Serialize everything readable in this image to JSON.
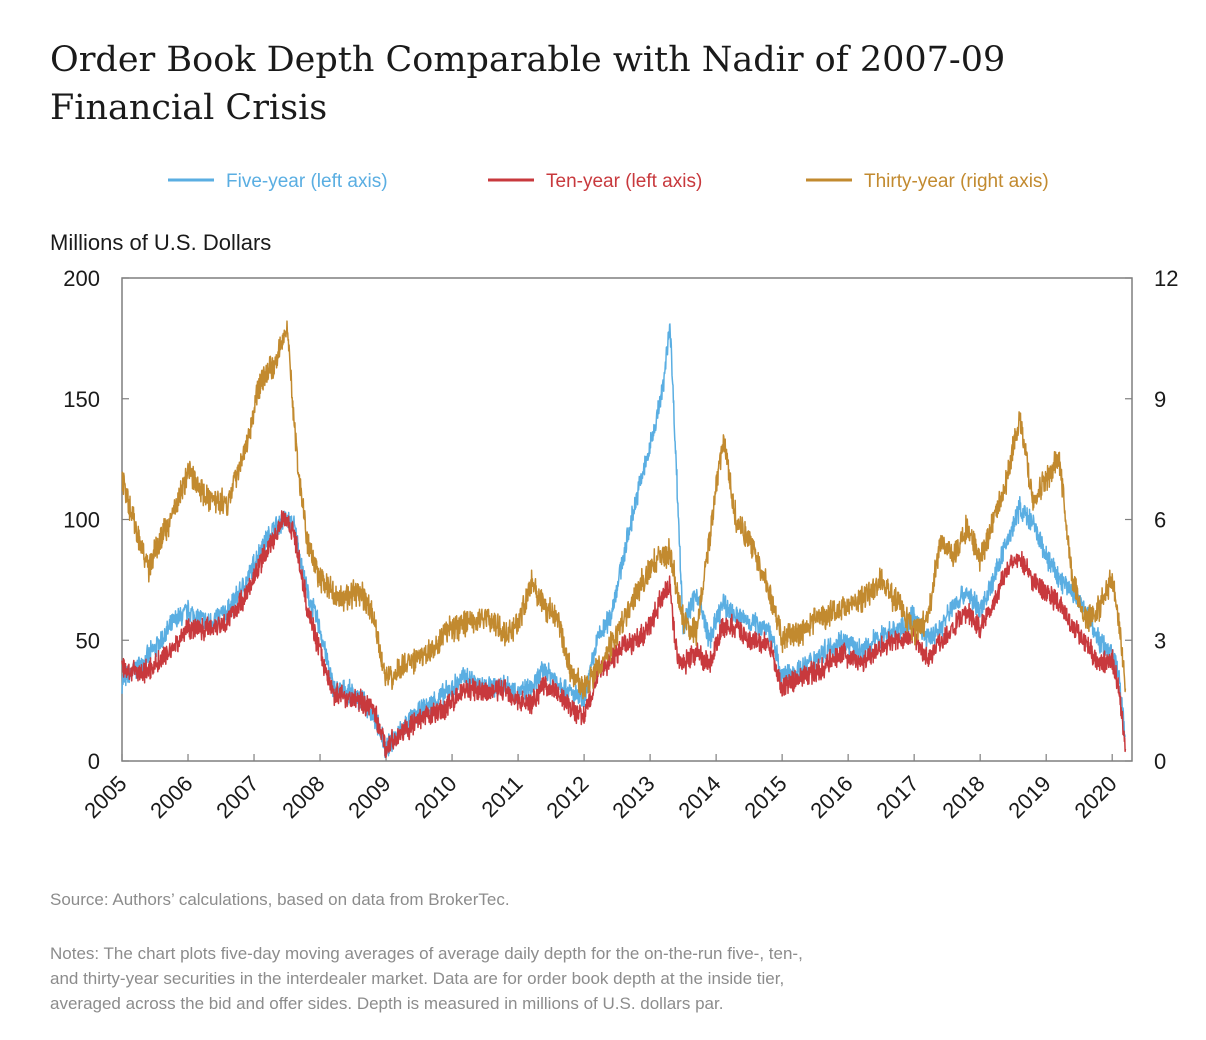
{
  "title_lines": [
    "Order Book Depth Comparable with Nadir of 2007-09",
    "Financial Crisis"
  ],
  "colors": {
    "five_year": "#5aaee2",
    "ten_year": "#c8393d",
    "thirty_year": "#c28a2f",
    "axis": "#7f7f7f",
    "text": "#1a1a1a",
    "note": "#8c8c8c"
  },
  "chart_data": {
    "type": "line",
    "left_axis_label": "Millions of U.S. Dollars",
    "left_ylim": [
      0,
      200
    ],
    "left_ticks": [
      "200",
      "150",
      "100",
      "50",
      "0"
    ],
    "right_ylim": [
      0,
      12
    ],
    "right_ticks": [
      "12",
      "9",
      "6",
      "3",
      "0"
    ],
    "x_range": [
      2005,
      2020.3
    ],
    "x_ticks": [
      "2005",
      "2006",
      "2007",
      "2008",
      "2009",
      "2010",
      "2011",
      "2012",
      "2013",
      "2014",
      "2015",
      "2016",
      "2017",
      "2018",
      "2019",
      "2020"
    ],
    "legend": [
      {
        "key": "five_year",
        "label": "Five-year (left axis)"
      },
      {
        "key": "ten_year",
        "label": "Ten-year (left axis)"
      },
      {
        "key": "thirty_year",
        "label": "Thirty-year (right axis)"
      }
    ],
    "series": [
      {
        "name": "Five-year (left axis)",
        "axis": "left",
        "color_key": "five_year",
        "x": [
          2005.0,
          2005.3,
          2005.6,
          2005.8,
          2006.0,
          2006.3,
          2006.6,
          2006.9,
          2007.1,
          2007.3,
          2007.45,
          2007.6,
          2007.8,
          2008.0,
          2008.2,
          2008.5,
          2008.8,
          2009.0,
          2009.3,
          2009.6,
          2009.9,
          2010.2,
          2010.5,
          2010.8,
          2011.0,
          2011.2,
          2011.4,
          2011.6,
          2011.8,
          2012.0,
          2012.2,
          2012.4,
          2012.6,
          2012.8,
          2013.0,
          2013.2,
          2013.3,
          2013.4,
          2013.5,
          2013.7,
          2013.9,
          2014.1,
          2014.3,
          2014.5,
          2014.8,
          2015.0,
          2015.3,
          2015.6,
          2015.9,
          2016.2,
          2016.5,
          2016.8,
          2017.0,
          2017.2,
          2017.4,
          2017.6,
          2017.8,
          2018.0,
          2018.2,
          2018.4,
          2018.6,
          2018.8,
          2019.0,
          2019.2,
          2019.4,
          2019.6,
          2019.8,
          2020.0,
          2020.1,
          2020.2
        ],
        "y": [
          33,
          40,
          50,
          58,
          62,
          57,
          62,
          75,
          88,
          96,
          100,
          98,
          70,
          55,
          30,
          28,
          20,
          5,
          15,
          22,
          28,
          35,
          30,
          32,
          28,
          30,
          38,
          33,
          28,
          25,
          50,
          60,
          85,
          110,
          130,
          155,
          182,
          120,
          55,
          70,
          50,
          65,
          60,
          58,
          55,
          35,
          38,
          45,
          50,
          45,
          52,
          55,
          60,
          50,
          55,
          65,
          70,
          62,
          75,
          90,
          105,
          98,
          85,
          75,
          70,
          62,
          50,
          45,
          35,
          10
        ]
      },
      {
        "name": "Ten-year (left axis)",
        "axis": "left",
        "color_key": "ten_year",
        "x": [
          2005.0,
          2005.3,
          2005.6,
          2005.8,
          2006.0,
          2006.3,
          2006.6,
          2006.9,
          2007.1,
          2007.3,
          2007.45,
          2007.6,
          2007.8,
          2008.0,
          2008.2,
          2008.5,
          2008.8,
          2009.0,
          2009.3,
          2009.6,
          2009.9,
          2010.2,
          2010.5,
          2010.8,
          2011.0,
          2011.2,
          2011.4,
          2011.6,
          2011.8,
          2012.0,
          2012.2,
          2012.4,
          2012.6,
          2012.8,
          2013.0,
          2013.2,
          2013.3,
          2013.4,
          2013.5,
          2013.7,
          2013.9,
          2014.1,
          2014.3,
          2014.5,
          2014.8,
          2015.0,
          2015.3,
          2015.6,
          2015.9,
          2016.2,
          2016.5,
          2016.8,
          2017.0,
          2017.2,
          2017.4,
          2017.6,
          2017.8,
          2018.0,
          2018.2,
          2018.4,
          2018.6,
          2018.8,
          2019.0,
          2019.2,
          2019.4,
          2019.6,
          2019.8,
          2020.0,
          2020.1,
          2020.2
        ],
        "y": [
          38,
          36,
          42,
          48,
          55,
          55,
          58,
          70,
          82,
          92,
          102,
          95,
          65,
          45,
          28,
          26,
          22,
          6,
          13,
          18,
          22,
          30,
          28,
          30,
          25,
          24,
          32,
          28,
          22,
          18,
          35,
          42,
          48,
          50,
          55,
          70,
          72,
          45,
          40,
          45,
          40,
          55,
          56,
          50,
          48,
          30,
          35,
          38,
          45,
          40,
          48,
          50,
          52,
          42,
          50,
          55,
          62,
          55,
          65,
          80,
          84,
          75,
          70,
          65,
          55,
          50,
          40,
          42,
          30,
          5
        ]
      },
      {
        "name": "Thirty-year (right axis)",
        "axis": "right",
        "color_key": "thirty_year",
        "x": [
          2005.0,
          2005.2,
          2005.4,
          2005.6,
          2005.8,
          2006.0,
          2006.3,
          2006.6,
          2006.9,
          2007.1,
          2007.3,
          2007.5,
          2007.65,
          2007.8,
          2008.0,
          2008.3,
          2008.6,
          2008.8,
          2009.0,
          2009.3,
          2009.6,
          2009.9,
          2010.2,
          2010.5,
          2010.8,
          2011.0,
          2011.2,
          2011.4,
          2011.6,
          2011.8,
          2012.0,
          2012.3,
          2012.6,
          2012.9,
          2013.1,
          2013.3,
          2013.5,
          2013.7,
          2013.9,
          2014.1,
          2014.3,
          2014.5,
          2014.8,
          2015.0,
          2015.3,
          2015.6,
          2015.9,
          2016.2,
          2016.5,
          2016.8,
          2017.0,
          2017.2,
          2017.4,
          2017.6,
          2017.8,
          2018.0,
          2018.2,
          2018.4,
          2018.6,
          2018.8,
          2019.0,
          2019.2,
          2019.4,
          2019.6,
          2019.8,
          2020.0,
          2020.1,
          2020.2
        ],
        "y": [
          7.0,
          5.8,
          4.8,
          5.6,
          6.2,
          7.2,
          6.5,
          6.4,
          8.0,
          9.5,
          9.8,
          10.8,
          7.5,
          5.5,
          4.5,
          4.0,
          4.2,
          3.6,
          2.0,
          2.4,
          2.6,
          3.2,
          3.4,
          3.6,
          3.2,
          3.4,
          4.5,
          3.8,
          3.5,
          2.2,
          1.8,
          2.5,
          3.5,
          4.5,
          5.0,
          5.2,
          3.5,
          3.2,
          5.5,
          8.0,
          6.0,
          5.5,
          4.2,
          3.0,
          3.2,
          3.6,
          3.8,
          4.0,
          4.5,
          3.8,
          3.2,
          3.5,
          5.5,
          5.0,
          5.8,
          5.0,
          6.0,
          7.0,
          8.5,
          6.5,
          7.0,
          7.5,
          4.5,
          3.5,
          3.8,
          4.5,
          3.5,
          1.8
        ]
      }
    ]
  },
  "source_text": "Source: Authors’ calculations, based on data from BrokerTec.",
  "notes_lines": [
    "Notes: The chart plots five-day moving averages of average daily depth for the on-the-run five-, ten-,",
    "and thirty-year securities in the interdealer market. Data are for order book depth at the inside tier,",
    "averaged across the bid and offer sides. Depth is measured in millions of U.S. dollars par."
  ]
}
